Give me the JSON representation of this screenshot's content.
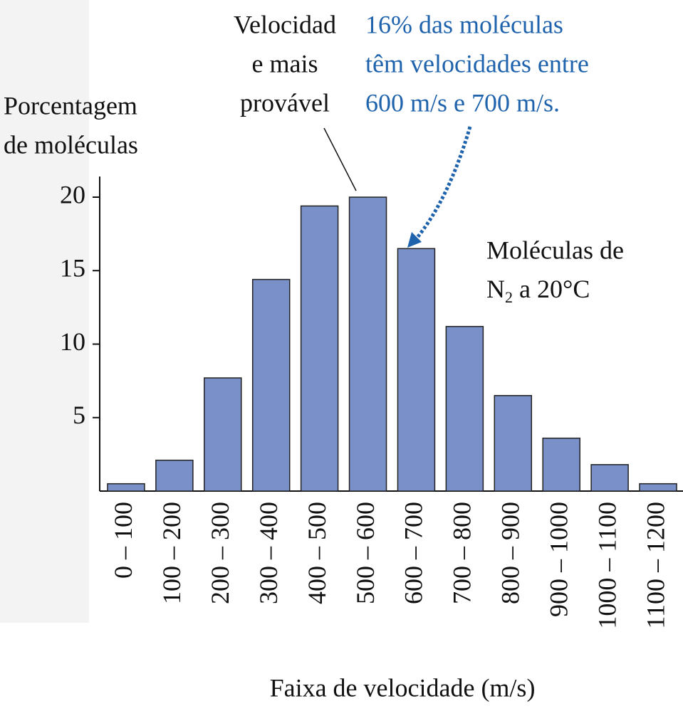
{
  "chart_data": {
    "type": "bar",
    "y_label": [
      "Porcentagem",
      "de moléculas"
    ],
    "x_label": "Faixa de velocidade (m/s)",
    "categories": [
      "0 – 100",
      "100 – 200",
      "200 – 300",
      "300 – 400",
      "400 – 500",
      "500 – 600",
      "600 – 700",
      "700 – 800",
      "800 – 900",
      "900 – 1000",
      "1000 – 1100",
      "1100 – 1200"
    ],
    "values": [
      0.5,
      2.1,
      7.7,
      14.4,
      19.4,
      20.0,
      16.5,
      11.2,
      6.5,
      3.6,
      1.8,
      0.5
    ],
    "color": "#7a90c8",
    "ylim": [
      0,
      21.3
    ],
    "yticks": [
      5,
      10,
      15,
      20
    ],
    "annotations": {
      "peak": [
        "Velocidad",
        "e mais",
        "provável"
      ],
      "highlight": [
        "16% das moléculas",
        "têm velocidades entre",
        "600 m/s e 700 m/s."
      ],
      "molecule": {
        "line1": "Moléculas de",
        "formula": "N",
        "subscript": "2",
        "rest": " a 20°C"
      }
    }
  }
}
